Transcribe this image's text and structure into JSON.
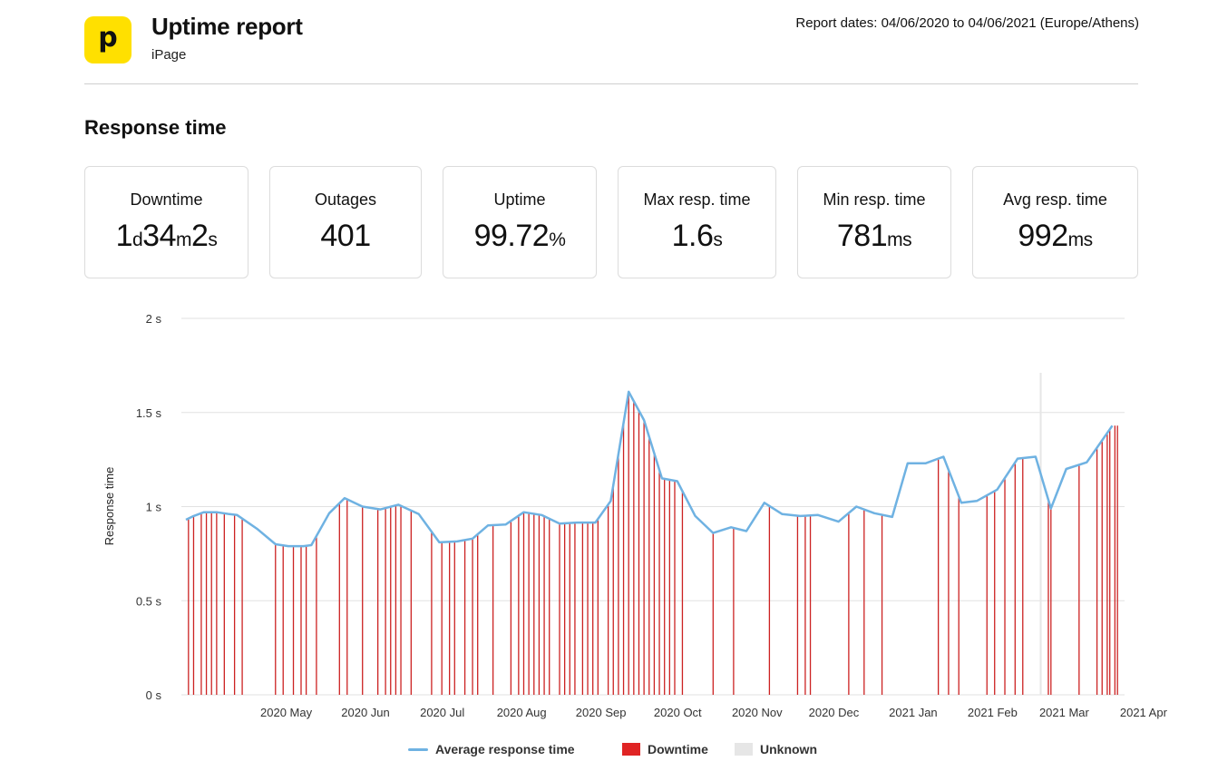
{
  "header": {
    "logo_letter": "p",
    "title": "Uptime report",
    "subtitle": "iPage",
    "report_dates": "Report dates: 04/06/2020 to 04/06/2021 (Europe/Athens)"
  },
  "section_title": "Response time",
  "stats": [
    {
      "label": "Downtime",
      "parts": [
        [
          "1",
          ""
        ],
        [
          "d",
          "u"
        ],
        [
          "34",
          ""
        ],
        [
          "m",
          "u"
        ],
        [
          "2",
          ""
        ],
        [
          "s",
          "u"
        ]
      ]
    },
    {
      "label": "Outages",
      "parts": [
        [
          "401",
          ""
        ]
      ]
    },
    {
      "label": "Uptime",
      "parts": [
        [
          "99.72",
          ""
        ],
        [
          "%",
          "u"
        ]
      ]
    },
    {
      "label": "Max resp. time",
      "parts": [
        [
          "1.6",
          ""
        ],
        [
          "s",
          "u"
        ]
      ]
    },
    {
      "label": "Min resp. time",
      "parts": [
        [
          "781",
          ""
        ],
        [
          "ms",
          "u"
        ]
      ]
    },
    {
      "label": "Avg resp. time",
      "parts": [
        [
          "992",
          ""
        ],
        [
          "ms",
          "u"
        ]
      ]
    }
  ],
  "colors": {
    "line": "#6fb2e2",
    "downtime": "#cc2222",
    "downtime_legend": "#e02424",
    "unknown": "#e6e6e6",
    "grid": "#e2e2e2",
    "logo": "#ffe000"
  },
  "chart_data": {
    "type": "line",
    "ylabel": "Response time",
    "y_ticks": [
      "0 s",
      "0.5 s",
      "1 s",
      "1.5 s",
      "2 s"
    ],
    "ylim": [
      0,
      2
    ],
    "x_ticks": [
      "2020 May",
      "2020 Jun",
      "2020 Jul",
      "2020 Aug",
      "2020 Sep",
      "2020 Oct",
      "2020 Nov",
      "2020 Dec",
      "2021 Jan",
      "2021 Feb",
      "2021 Mar",
      "2021 Apr"
    ],
    "xlim": [
      "2020-04-06",
      "2021-04-06"
    ],
    "grid": true,
    "legend": [
      "Average response time",
      "Downtime",
      "Unknown"
    ],
    "legend_position": "bottom",
    "series": [
      {
        "name": "Average response time",
        "points": [
          [
            "2020-04-06",
            0.93
          ],
          [
            "2020-04-09",
            0.95
          ],
          [
            "2020-04-13",
            0.97
          ],
          [
            "2020-04-18",
            0.97
          ],
          [
            "2020-04-23",
            0.96
          ],
          [
            "2020-04-26",
            0.955
          ],
          [
            "2020-05-04",
            0.88
          ],
          [
            "2020-05-11",
            0.8
          ],
          [
            "2020-05-16",
            0.79
          ],
          [
            "2020-05-22",
            0.79
          ],
          [
            "2020-05-25",
            0.795
          ],
          [
            "2020-06-01",
            0.965
          ],
          [
            "2020-06-07",
            1.045
          ],
          [
            "2020-06-14",
            1.0
          ],
          [
            "2020-06-21",
            0.985
          ],
          [
            "2020-06-28",
            1.01
          ],
          [
            "2020-07-06",
            0.96
          ],
          [
            "2020-07-14",
            0.81
          ],
          [
            "2020-07-21",
            0.815
          ],
          [
            "2020-07-27",
            0.83
          ],
          [
            "2020-08-02",
            0.9
          ],
          [
            "2020-08-09",
            0.905
          ],
          [
            "2020-08-16",
            0.97
          ],
          [
            "2020-08-23",
            0.955
          ],
          [
            "2020-08-30",
            0.91
          ],
          [
            "2020-09-06",
            0.915
          ],
          [
            "2020-09-13",
            0.915
          ],
          [
            "2020-09-19",
            1.03
          ],
          [
            "2020-09-26",
            1.61
          ],
          [
            "2020-10-02",
            1.46
          ],
          [
            "2020-10-09",
            1.15
          ],
          [
            "2020-10-15",
            1.135
          ],
          [
            "2020-10-22",
            0.95
          ],
          [
            "2020-10-29",
            0.86
          ],
          [
            "2020-11-05",
            0.89
          ],
          [
            "2020-11-11",
            0.87
          ],
          [
            "2020-11-18",
            1.02
          ],
          [
            "2020-11-25",
            0.96
          ],
          [
            "2020-12-02",
            0.95
          ],
          [
            "2020-12-09",
            0.955
          ],
          [
            "2020-12-17",
            0.92
          ],
          [
            "2020-12-24",
            1.0
          ],
          [
            "2020-12-31",
            0.965
          ],
          [
            "2021-01-07",
            0.945
          ],
          [
            "2021-01-13",
            1.23
          ],
          [
            "2021-01-20",
            1.23
          ],
          [
            "2021-01-27",
            1.265
          ],
          [
            "2021-02-03",
            1.02
          ],
          [
            "2021-02-09",
            1.03
          ],
          [
            "2021-02-17",
            1.09
          ],
          [
            "2021-02-25",
            1.255
          ],
          [
            "2021-03-04",
            1.265
          ],
          [
            "2021-03-10",
            0.99
          ],
          [
            "2021-03-16",
            1.2
          ],
          [
            "2021-03-24",
            1.235
          ],
          [
            "2021-04-03",
            1.43
          ]
        ]
      }
    ],
    "downtime_dates": [
      "2020-04-07",
      "2020-04-09",
      "2020-04-12",
      "2020-04-14",
      "2020-04-16",
      "2020-04-18",
      "2020-04-21",
      "2020-04-25",
      "2020-04-28",
      "2020-05-11",
      "2020-05-14",
      "2020-05-18",
      "2020-05-21",
      "2020-05-23",
      "2020-05-27",
      "2020-06-05",
      "2020-06-08",
      "2020-06-14",
      "2020-06-20",
      "2020-06-23",
      "2020-06-25",
      "2020-06-27",
      "2020-06-29",
      "2020-07-03",
      "2020-07-11",
      "2020-07-15",
      "2020-07-18",
      "2020-07-20",
      "2020-07-24",
      "2020-07-27",
      "2020-07-29",
      "2020-08-04",
      "2020-08-11",
      "2020-08-14",
      "2020-08-16",
      "2020-08-18",
      "2020-08-20",
      "2020-08-22",
      "2020-08-24",
      "2020-08-26",
      "2020-08-30",
      "2020-09-01",
      "2020-09-03",
      "2020-09-05",
      "2020-09-08",
      "2020-09-10",
      "2020-09-12",
      "2020-09-14",
      "2020-09-18",
      "2020-09-20",
      "2020-09-22",
      "2020-09-24",
      "2020-09-26",
      "2020-09-28",
      "2020-09-30",
      "2020-10-02",
      "2020-10-04",
      "2020-10-06",
      "2020-10-08",
      "2020-10-10",
      "2020-10-12",
      "2020-10-14",
      "2020-10-17",
      "2020-10-29",
      "2020-11-06",
      "2020-11-20",
      "2020-12-01",
      "2020-12-04",
      "2020-12-06",
      "2020-12-21",
      "2020-12-27",
      "2021-01-03",
      "2021-01-25",
      "2021-01-29",
      "2021-02-02",
      "2021-02-13",
      "2021-02-16",
      "2021-02-20",
      "2021-02-24",
      "2021-02-27",
      "2021-03-09",
      "2021-03-10",
      "2021-03-21",
      "2021-03-28",
      "2021-03-30",
      "2021-04-01",
      "2021-04-02",
      "2021-04-04",
      "2021-04-05"
    ],
    "unknown_dates": [
      "2021-03-06"
    ]
  }
}
